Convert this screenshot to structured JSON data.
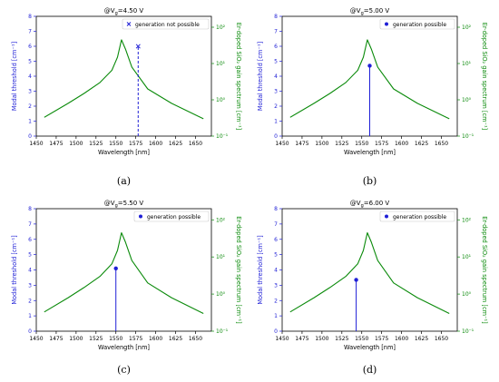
{
  "colors": {
    "threshold": "#1f1fd6",
    "gain": "#0a8a0a",
    "axis": "#000000"
  },
  "axes_labels": {
    "xlabel": "Wavelength [nm]",
    "ylabel_left": "Modal threshold [cm⁻¹]",
    "ylabel_right": "Er-doped SiO₂ gain spectrum [cm⁻¹]"
  },
  "chart_data": [
    {
      "type": "line",
      "caption": "(a)",
      "title": "@V_g=4.50 V",
      "title_prefix": "@V",
      "title_sub": "g",
      "title_suffix": "=4.50 V",
      "legend": "generation not possible",
      "marker": "x",
      "line_style": "dashed",
      "threshold_point": {
        "x": 1578,
        "y": 6.0
      },
      "xlim": [
        1450,
        1670
      ],
      "ylim_left": [
        0,
        8
      ],
      "ylim_right_log": [
        -1,
        2.3
      ],
      "xticks": [
        1450,
        1475,
        1500,
        1525,
        1550,
        1575,
        1600,
        1625,
        1650
      ],
      "yticks_left": [
        0,
        1,
        2,
        3,
        4,
        5,
        6,
        7,
        8
      ],
      "yticks_right_exp": [
        -1,
        0,
        1,
        2
      ],
      "gain_curve": {
        "x": [
          1460,
          1490,
          1510,
          1530,
          1545,
          1552,
          1557,
          1562,
          1570,
          1590,
          1620,
          1660
        ],
        "y": [
          0.33,
          0.8,
          1.5,
          3.0,
          6.5,
          15,
          45,
          25,
          8,
          2.0,
          0.8,
          0.3
        ]
      }
    },
    {
      "type": "line",
      "caption": "(b)",
      "title": "@V_g=5.00 V",
      "title_prefix": "@V",
      "title_sub": "g",
      "title_suffix": "=5.00 V",
      "legend": "generation possible",
      "marker": "o",
      "line_style": "solid",
      "threshold_point": {
        "x": 1560,
        "y": 4.7
      },
      "xlim": [
        1450,
        1670
      ],
      "ylim_left": [
        0,
        8
      ],
      "ylim_right_log": [
        -1,
        2.3
      ],
      "xticks": [
        1450,
        1475,
        1500,
        1525,
        1550,
        1575,
        1600,
        1625,
        1650
      ],
      "yticks_left": [
        0,
        1,
        2,
        3,
        4,
        5,
        6,
        7,
        8
      ],
      "yticks_right_exp": [
        -1,
        0,
        1,
        2
      ],
      "gain_curve": {
        "x": [
          1460,
          1490,
          1510,
          1530,
          1545,
          1552,
          1557,
          1562,
          1570,
          1590,
          1620,
          1660
        ],
        "y": [
          0.33,
          0.8,
          1.5,
          3.0,
          6.5,
          15,
          45,
          25,
          8,
          2.0,
          0.8,
          0.3
        ]
      }
    },
    {
      "type": "line",
      "caption": "(c)",
      "title": "@V_g=5.50 V",
      "title_prefix": "@V",
      "title_sub": "g",
      "title_suffix": "=5.50 V",
      "legend": "generation possible",
      "marker": "o",
      "line_style": "solid",
      "threshold_point": {
        "x": 1550,
        "y": 4.1
      },
      "xlim": [
        1450,
        1670
      ],
      "ylim_left": [
        0,
        8
      ],
      "ylim_right_log": [
        -1,
        2.3
      ],
      "xticks": [
        1450,
        1475,
        1500,
        1525,
        1550,
        1575,
        1600,
        1625,
        1650
      ],
      "yticks_left": [
        0,
        1,
        2,
        3,
        4,
        5,
        6,
        7,
        8
      ],
      "yticks_right_exp": [
        -1,
        0,
        1,
        2
      ],
      "gain_curve": {
        "x": [
          1460,
          1490,
          1510,
          1530,
          1545,
          1552,
          1557,
          1562,
          1570,
          1590,
          1620,
          1660
        ],
        "y": [
          0.33,
          0.8,
          1.5,
          3.0,
          6.5,
          15,
          45,
          25,
          8,
          2.0,
          0.8,
          0.3
        ]
      }
    },
    {
      "type": "line",
      "caption": "(d)",
      "title": "@V_g=6.00 V",
      "title_prefix": "@V",
      "title_sub": "g",
      "title_suffix": "=6.00 V",
      "legend": "generation possible",
      "marker": "o",
      "line_style": "solid",
      "threshold_point": {
        "x": 1543,
        "y": 3.35
      },
      "xlim": [
        1450,
        1670
      ],
      "ylim_left": [
        0,
        8
      ],
      "ylim_right_log": [
        -1,
        2.3
      ],
      "xticks": [
        1450,
        1475,
        1500,
        1525,
        1550,
        1575,
        1600,
        1625,
        1650
      ],
      "yticks_left": [
        0,
        1,
        2,
        3,
        4,
        5,
        6,
        7,
        8
      ],
      "yticks_right_exp": [
        -1,
        0,
        1,
        2
      ],
      "gain_curve": {
        "x": [
          1460,
          1490,
          1510,
          1530,
          1545,
          1552,
          1557,
          1562,
          1570,
          1590,
          1620,
          1660
        ],
        "y": [
          0.33,
          0.8,
          1.5,
          3.0,
          6.5,
          15,
          45,
          25,
          8,
          2.0,
          0.8,
          0.3
        ]
      }
    }
  ]
}
